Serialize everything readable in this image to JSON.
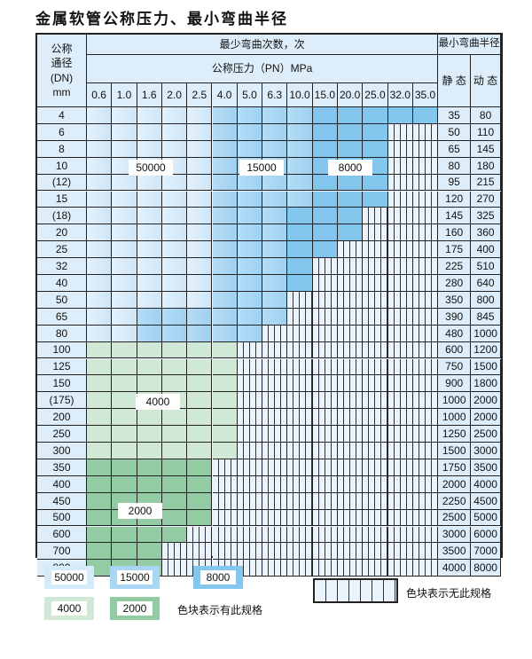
{
  "title": "金属软管公称压力、最小弯曲半径",
  "header": {
    "dn_label": "公称\n通径\n(DN)\nmm",
    "cycles_label": "最少弯曲次数，次",
    "pressure_label": "公称压力（PN）MPa",
    "radius_label": "最小弯曲半径",
    "static_label": "静 态",
    "dynamic_label": "动 态",
    "pressures": [
      "0.6",
      "1.0",
      "1.6",
      "2.0",
      "2.5",
      "4.0",
      "5.0",
      "6.3",
      "10.0",
      "15.0",
      "20.0",
      "25.0",
      "32.0",
      "35.0"
    ]
  },
  "rows": [
    {
      "dn": "4",
      "static": "35",
      "dynamic": "80",
      "cells": "aaaaabbbbccccc"
    },
    {
      "dn": "6",
      "static": "50",
      "dynamic": "110",
      "cells": "aaaaabbbbccc"
    },
    {
      "dn": "8",
      "static": "65",
      "dynamic": "145",
      "cells": "aaaaabbbbccc"
    },
    {
      "dn": "10",
      "static": "80",
      "dynamic": "180",
      "cells": "aaaaabbbbccc"
    },
    {
      "dn": "(12)",
      "static": "95",
      "dynamic": "215",
      "cells": "aaaaabbbbccc"
    },
    {
      "dn": "15",
      "static": "120",
      "dynamic": "270",
      "cells": "aaaaabbbbccc"
    },
    {
      "dn": "(18)",
      "static": "145",
      "dynamic": "325",
      "cells": "aaaaabbbccc"
    },
    {
      "dn": "20",
      "static": "160",
      "dynamic": "360",
      "cells": "aaaaabbbccc"
    },
    {
      "dn": "25",
      "static": "175",
      "dynamic": "400",
      "cells": "aaaaabbbcc"
    },
    {
      "dn": "32",
      "static": "225",
      "dynamic": "510",
      "cells": "aaaaabbbc"
    },
    {
      "dn": "40",
      "static": "280",
      "dynamic": "640",
      "cells": "aaaaabbbc"
    },
    {
      "dn": "50",
      "static": "350",
      "dynamic": "800",
      "cells": "aaaaabbb"
    },
    {
      "dn": "65",
      "static": "390",
      "dynamic": "845",
      "cells": "aabbbbbb"
    },
    {
      "dn": "80",
      "static": "480",
      "dynamic": "1000",
      "cells": "aabbbbb"
    },
    {
      "dn": "100",
      "static": "600",
      "dynamic": "1200",
      "cells": "dddddd"
    },
    {
      "dn": "125",
      "static": "750",
      "dynamic": "1500",
      "cells": "dddddd"
    },
    {
      "dn": "150",
      "static": "900",
      "dynamic": "1800",
      "cells": "dddddd"
    },
    {
      "dn": "(175)",
      "static": "1000",
      "dynamic": "2000",
      "cells": "dddddd"
    },
    {
      "dn": "200",
      "static": "1000",
      "dynamic": "2000",
      "cells": "dddddd"
    },
    {
      "dn": "250",
      "static": "1250",
      "dynamic": "2500",
      "cells": "dddddd"
    },
    {
      "dn": "300",
      "static": "1500",
      "dynamic": "3000",
      "cells": "dddddd"
    },
    {
      "dn": "350",
      "static": "1750",
      "dynamic": "3500",
      "cells": "fffff"
    },
    {
      "dn": "400",
      "static": "2000",
      "dynamic": "4000",
      "cells": "fffff"
    },
    {
      "dn": "450",
      "static": "2250",
      "dynamic": "4500",
      "cells": "fffff"
    },
    {
      "dn": "500",
      "static": "2500",
      "dynamic": "5000",
      "cells": "fffff"
    },
    {
      "dn": "600",
      "static": "3000",
      "dynamic": "6000",
      "cells": "ffff"
    },
    {
      "dn": "700",
      "static": "3500",
      "dynamic": "7000",
      "cells": "fff"
    },
    {
      "dn": "800",
      "static": "4000",
      "dynamic": "8000",
      "cells": "fff"
    }
  ],
  "cell_key": {
    "a": "50000",
    "b": "15000",
    "c": "8000",
    "d": "4000",
    "f": "2000"
  },
  "region_labels": [
    "50000",
    "15000",
    "8000",
    "4000",
    "2000"
  ],
  "legend": {
    "items": [
      "50000",
      "15000",
      "8000",
      "4000",
      "2000"
    ],
    "available_note": "色块表示有此规格",
    "unavailable_note": "色块表示无此规格"
  },
  "colors": {
    "50000": "#d6ebf9",
    "15000": "#a9d6f3",
    "8000": "#83c7ee",
    "4000": "#d2e8d6",
    "2000": "#93cca4",
    "none": "#eaf3fb"
  }
}
